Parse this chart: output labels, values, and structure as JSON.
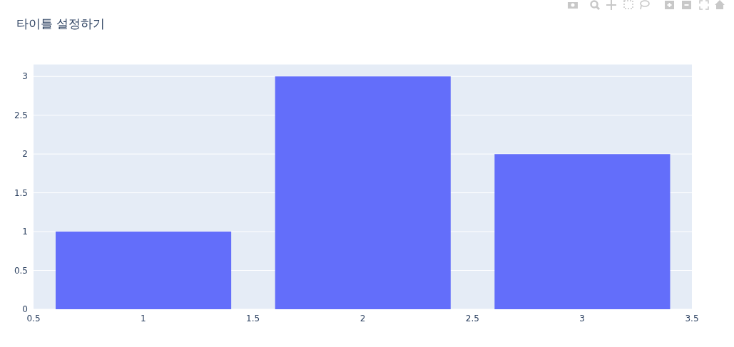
{
  "chart_data": {
    "type": "bar",
    "title": "타이틀 설정하기",
    "x": [
      1,
      2,
      3
    ],
    "values": [
      1,
      3,
      2
    ],
    "color": "#636efa",
    "xlim": [
      0.5,
      3.5
    ],
    "xticks": [
      0.5,
      1,
      1.5,
      2,
      2.5,
      3,
      3.5
    ],
    "ylim": [
      0,
      3.158
    ],
    "yticks": [
      0,
      0.5,
      1,
      1.5,
      2,
      2.5,
      3
    ],
    "grid": "y"
  }
}
